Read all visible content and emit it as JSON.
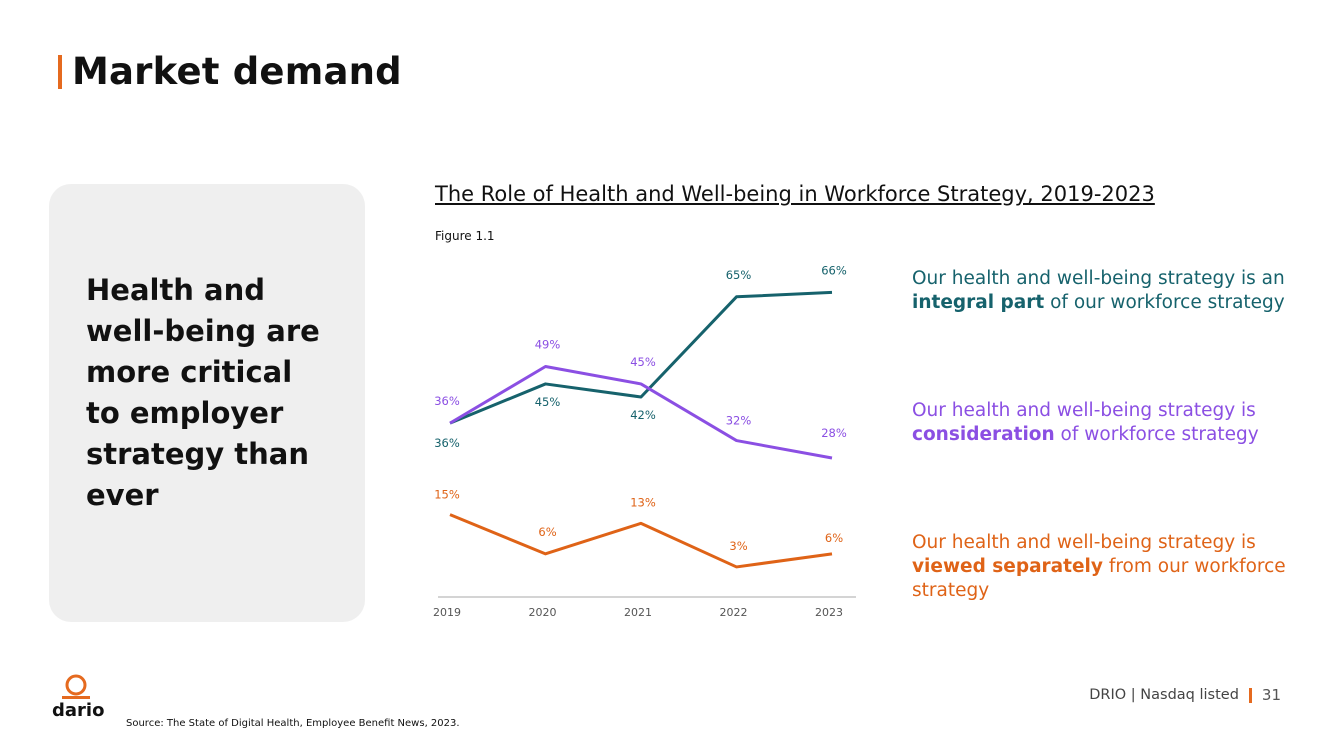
{
  "slide": {
    "title": "Market demand",
    "card_text": "Health and well-being are more critical to employer strategy than ever",
    "source": "Source: The State of Digital Health, Employee Benefit News, 2023.",
    "footer_text": "DRIO | Nasdaq listed",
    "page_number": "31",
    "logo_text": "dario"
  },
  "legend": {
    "integral": {
      "pre": "Our health and well-being strategy is an ",
      "bold": "integral part",
      "post": " of our workforce strategy"
    },
    "consideration": {
      "pre": "Our health and well-being strategy is ",
      "bold": "consideration",
      "post": " of workforce strategy"
    },
    "separate": {
      "pre": "Our health and well-being strategy is ",
      "bold": "viewed separately",
      "post": " from our workforce strategy"
    }
  },
  "chart_data": {
    "type": "line",
    "title": "The Role of Health and Well-being in Workforce Strategy, 2019-2023",
    "figure_label": "Figure 1.1",
    "categories": [
      "2019",
      "2020",
      "2021",
      "2022",
      "2023"
    ],
    "ylim": [
      0,
      70
    ],
    "grid": false,
    "series": [
      {
        "name": "integral part",
        "color": "#16626c",
        "values": [
          36,
          45,
          42,
          65,
          66
        ],
        "labels": [
          "36%",
          "45%",
          "42%",
          "65%",
          "66%"
        ]
      },
      {
        "name": "consideration",
        "color": "#8b4fe3",
        "values": [
          36,
          49,
          45,
          32,
          28
        ],
        "labels": [
          "36%",
          "49%",
          "45%",
          "32%",
          "28%"
        ]
      },
      {
        "name": "viewed separately",
        "color": "#df6317",
        "values": [
          15,
          6,
          13,
          3,
          6
        ],
        "labels": [
          "15%",
          "6%",
          "13%",
          "3%",
          "6%"
        ]
      }
    ]
  }
}
